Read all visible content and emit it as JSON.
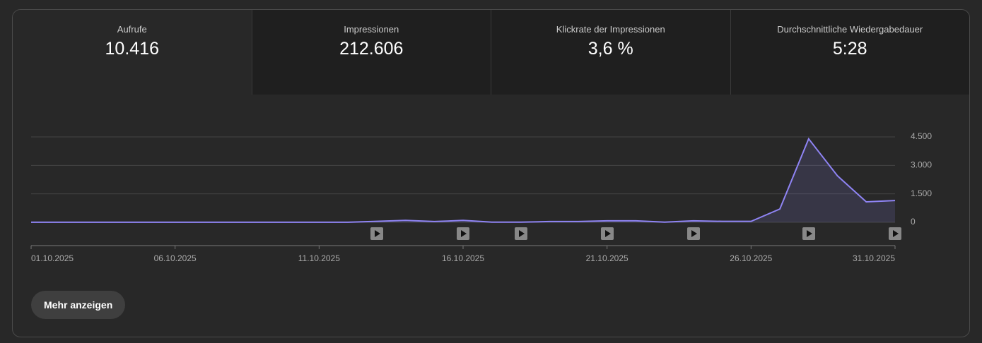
{
  "tabs": [
    {
      "label": "Aufrufe",
      "value": "10.416"
    },
    {
      "label": "Impressionen",
      "value": "212.606"
    },
    {
      "label": "Klickrate der Impressionen",
      "value": "3,6 %"
    },
    {
      "label": "Durchschnittliche Wiedergabedauer",
      "value": "5:28"
    }
  ],
  "chart_data": {
    "type": "line",
    "categories": [
      "01.10.2025",
      null,
      null,
      null,
      null,
      "06.10.2025",
      null,
      null,
      null,
      null,
      "11.10.2025",
      null,
      null,
      null,
      null,
      "16.10.2025",
      null,
      null,
      null,
      null,
      "21.10.2025",
      null,
      null,
      null,
      null,
      "26.10.2025",
      null,
      null,
      null,
      null,
      "31.10.2025"
    ],
    "values": [
      5,
      5,
      5,
      5,
      5,
      5,
      5,
      5,
      5,
      5,
      5,
      5,
      50,
      100,
      40,
      100,
      10,
      10,
      40,
      40,
      80,
      80,
      10,
      80,
      50,
      50,
      700,
      4400,
      2450,
      1080,
      1150
    ],
    "color": "#8f84f4",
    "ylim": [
      0,
      4500
    ],
    "yticks": [
      {
        "value": 0,
        "label": "0"
      },
      {
        "value": 1500,
        "label": "1.500"
      },
      {
        "value": 3000,
        "label": "3.000"
      },
      {
        "value": 4500,
        "label": "4.500"
      }
    ],
    "grid": true
  },
  "button": "Mehr anzeigen"
}
